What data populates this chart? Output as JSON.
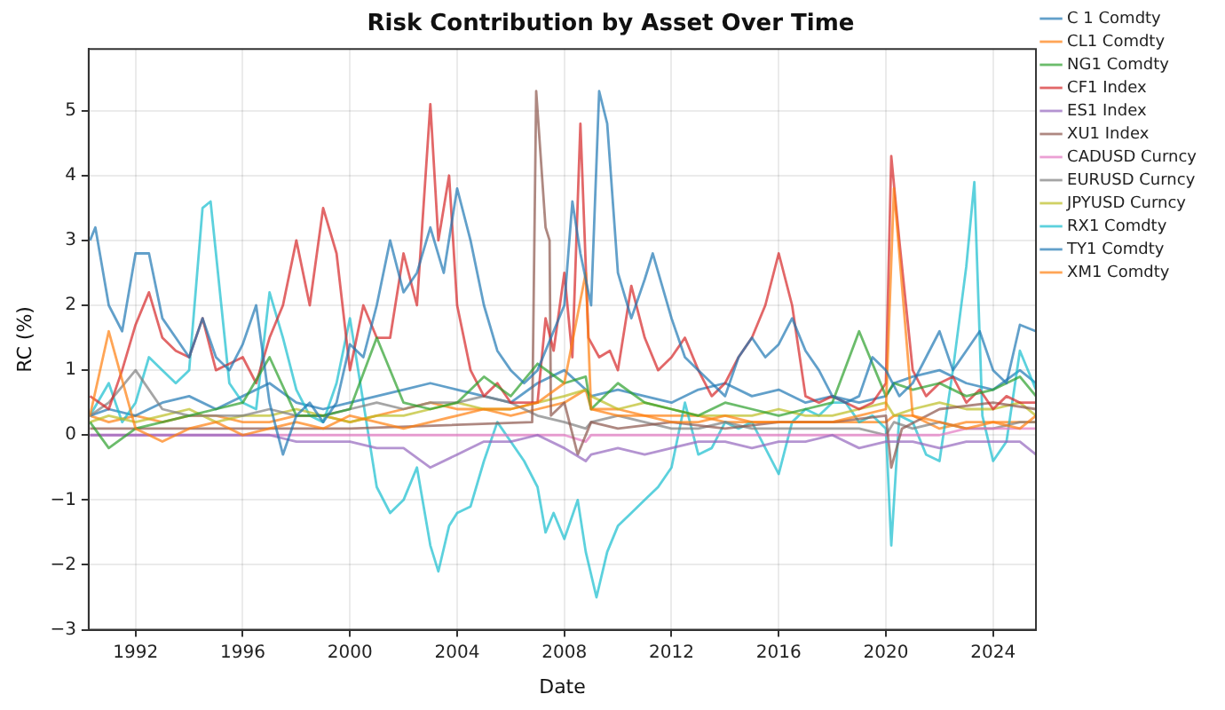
{
  "chart_data": {
    "type": "line",
    "title": "Risk Contribution by Asset Over Time",
    "xlabel": "Date",
    "ylabel": "RC (%)",
    "x": [
      1990.3,
      1991,
      1992,
      1993,
      1994,
      1995,
      1996,
      1997,
      1998,
      1999,
      2000,
      2001,
      2002,
      2003,
      2004,
      2005,
      2006,
      2007,
      2008,
      2008.8,
      2009,
      2010,
      2011,
      2012,
      2013,
      2014,
      2015,
      2016,
      2017,
      2018,
      2019,
      2020,
      2020.3,
      2021,
      2022,
      2023,
      2024,
      2025,
      2025.6
    ],
    "xlim": [
      1990.25,
      2025.6
    ],
    "xticks": [
      1992,
      1996,
      2000,
      2004,
      2008,
      2012,
      2016,
      2020,
      2024
    ],
    "ylim": [
      -3,
      5.95
    ],
    "yticks": [
      {
        "value": -3,
        "label": "−3"
      },
      {
        "value": -2,
        "label": "−2"
      },
      {
        "value": -1,
        "label": "−1"
      },
      0,
      1,
      2,
      3,
      4,
      5
    ],
    "grid": true,
    "legend": "right",
    "marker": "none",
    "line_style": "solid",
    "series": [
      {
        "name": "C 1 Comdty",
        "color": "#1f77b4",
        "x": [
          1990.3,
          1990.5,
          1991,
          1991.5,
          1992,
          1992.5,
          1993,
          1993.5,
          1994,
          1994.5,
          1995,
          1995.5,
          1996,
          1996.5,
          1997,
          1997.5,
          1998,
          1998.5,
          1999,
          1999.5,
          2000,
          2000.5,
          2001,
          2001.5,
          2002,
          2002.5,
          2003,
          2003.5,
          2004,
          2004.5,
          2005,
          2005.5,
          2006,
          2006.5,
          2007,
          2007.5,
          2008,
          2008.3,
          2008.6,
          2009,
          2009.3,
          2009.6,
          2010,
          2010.5,
          2011,
          2011.3,
          2012,
          2012.5,
          2013,
          2013.5,
          2014,
          2014.5,
          2015,
          2015.5,
          2016,
          2016.5,
          2017,
          2017.5,
          2018,
          2018.5,
          2019,
          2019.5,
          2020,
          2020.5,
          2021,
          2021.5,
          2022,
          2022.5,
          2023,
          2023.5,
          2024,
          2024.5,
          2025,
          2025.6
        ],
        "values": [
          3.0,
          3.2,
          2.0,
          1.6,
          2.8,
          2.8,
          1.8,
          1.5,
          1.2,
          1.8,
          1.2,
          1.0,
          1.4,
          2.0,
          0.5,
          -0.3,
          0.3,
          0.5,
          0.2,
          0.5,
          1.4,
          1.2,
          2.0,
          3.0,
          2.2,
          2.5,
          3.2,
          2.5,
          3.8,
          3.0,
          2.0,
          1.3,
          1.0,
          0.8,
          1.0,
          1.5,
          2.0,
          3.6,
          2.8,
          2.0,
          5.3,
          4.8,
          2.5,
          1.8,
          2.4,
          2.8,
          1.8,
          1.2,
          1.0,
          0.8,
          0.6,
          1.2,
          1.5,
          1.2,
          1.4,
          1.8,
          1.3,
          1.0,
          0.6,
          0.5,
          0.6,
          1.2,
          1.0,
          0.6,
          0.8,
          1.2,
          1.6,
          1.0,
          1.3,
          1.6,
          1.0,
          0.8,
          1.7,
          1.6
        ]
      },
      {
        "name": "CL1 Comdty",
        "color": "#ff7f0e",
        "values": [
          0.3,
          1.6,
          0.1,
          -0.1,
          0.1,
          0.2,
          0.0,
          0.1,
          0.2,
          0.1,
          0.3,
          0.2,
          0.1,
          0.2,
          0.3,
          0.4,
          0.4,
          0.5,
          0.8,
          2.5,
          0.4,
          0.3,
          0.3,
          0.2,
          0.2,
          0.3,
          0.2,
          0.2,
          0.2,
          0.2,
          0.3,
          0.4,
          3.8,
          0.3,
          0.2,
          0.1,
          0.2,
          0.1,
          0.3
        ]
      },
      {
        "name": "NG1 Comdty",
        "color": "#2ca02c",
        "values": [
          0.2,
          -0.2,
          0.1,
          0.2,
          0.3,
          0.4,
          0.5,
          1.2,
          0.3,
          0.3,
          0.4,
          1.5,
          0.5,
          0.4,
          0.5,
          0.9,
          0.6,
          1.1,
          0.8,
          0.9,
          0.4,
          0.8,
          0.5,
          0.4,
          0.3,
          0.5,
          0.4,
          0.3,
          0.4,
          0.5,
          1.6,
          0.6,
          0.8,
          0.7,
          0.8,
          0.6,
          0.7,
          0.9,
          0.6
        ]
      },
      {
        "name": "CF1 Index",
        "color": "#d62728",
        "x": [
          1990.3,
          1991,
          1991.5,
          1992,
          1992.5,
          1993,
          1993.5,
          1994,
          1994.5,
          1995,
          1996,
          1996.5,
          1997,
          1997.5,
          1998,
          1998.5,
          1999,
          1999.5,
          2000,
          2000.5,
          2001,
          2001.5,
          2002,
          2002.5,
          2003,
          2003.3,
          2003.7,
          2004,
          2004.5,
          2005,
          2005.5,
          2006,
          2006.5,
          2007,
          2007.3,
          2007.6,
          2008,
          2008.3,
          2008.6,
          2008.9,
          2009.3,
          2009.7,
          2010,
          2010.5,
          2011,
          2011.5,
          2012,
          2012.5,
          2013,
          2013.5,
          2014,
          2014.5,
          2015,
          2015.5,
          2016,
          2016.5,
          2017,
          2017.5,
          2018,
          2018.5,
          2019,
          2019.5,
          2020,
          2020.2,
          2020.5,
          2021,
          2021.5,
          2022,
          2022.5,
          2023,
          2023.5,
          2024,
          2024.5,
          2025,
          2025.6
        ],
        "values": [
          0.6,
          0.4,
          1.0,
          1.7,
          2.2,
          1.5,
          1.3,
          1.2,
          1.8,
          1.0,
          1.2,
          0.8,
          1.5,
          2.0,
          3.0,
          2.0,
          3.5,
          2.8,
          1.0,
          2.0,
          1.5,
          1.5,
          2.8,
          2.0,
          5.1,
          3.0,
          4.0,
          2.0,
          1.0,
          0.6,
          0.8,
          0.5,
          0.5,
          0.5,
          1.8,
          1.3,
          2.5,
          1.2,
          4.8,
          1.5,
          1.2,
          1.3,
          1.0,
          2.3,
          1.5,
          1.0,
          1.2,
          1.5,
          1.0,
          0.6,
          0.8,
          1.2,
          1.5,
          2.0,
          2.8,
          2.0,
          0.6,
          0.5,
          0.6,
          0.5,
          0.4,
          0.5,
          0.8,
          4.3,
          3.0,
          1.0,
          0.6,
          0.8,
          0.9,
          0.5,
          0.7,
          0.4,
          0.6,
          0.5,
          0.5
        ]
      },
      {
        "name": "ES1 Index",
        "color": "#9467bd",
        "values": [
          0.0,
          0.0,
          0.0,
          0.0,
          0.0,
          0.0,
          0.0,
          0.0,
          -0.1,
          -0.1,
          -0.1,
          -0.2,
          -0.2,
          -0.5,
          -0.3,
          -0.1,
          -0.1,
          0.0,
          -0.2,
          -0.4,
          -0.3,
          -0.2,
          -0.3,
          -0.2,
          -0.1,
          -0.1,
          -0.2,
          -0.1,
          -0.1,
          0.0,
          -0.2,
          -0.1,
          -0.1,
          -0.1,
          -0.2,
          -0.1,
          -0.1,
          -0.1,
          -0.3
        ]
      },
      {
        "name": "XU1 Index",
        "color": "#8c564b",
        "x": [
          1990.3,
          1995,
          2000,
          2006.8,
          2006.95,
          2007.3,
          2007.45,
          2007.5,
          2008,
          2008.5,
          2009,
          2010,
          2012,
          2014,
          2016,
          2018,
          2020,
          2020.2,
          2020.6,
          2022,
          2024,
          2025.6
        ],
        "values": [
          0.1,
          0.1,
          0.1,
          0.2,
          5.3,
          3.2,
          3.0,
          0.3,
          0.5,
          -0.3,
          0.2,
          0.1,
          0.2,
          0.1,
          0.2,
          0.2,
          0.3,
          -0.5,
          0.1,
          0.4,
          0.5,
          0.4
        ]
      },
      {
        "name": "CADUSD Curncy",
        "color": "#e377c2",
        "values": [
          0.0,
          0.0,
          0.0,
          0.0,
          0.0,
          0.0,
          0.0,
          0.0,
          0.0,
          0.0,
          0.0,
          0.0,
          0.0,
          0.0,
          0.0,
          0.0,
          0.0,
          0.0,
          0.0,
          -0.1,
          0.0,
          0.0,
          0.0,
          0.0,
          0.0,
          0.0,
          0.0,
          0.0,
          0.0,
          0.0,
          0.0,
          0.0,
          0.0,
          0.0,
          0.0,
          0.1,
          0.1,
          0.1,
          0.1
        ]
      },
      {
        "name": "EURUSD Curncy",
        "color": "#7f7f7f",
        "values": [
          0.3,
          0.5,
          1.0,
          0.4,
          0.3,
          0.3,
          0.3,
          0.4,
          0.3,
          0.3,
          0.4,
          0.5,
          0.4,
          0.5,
          0.5,
          0.6,
          0.5,
          0.3,
          0.2,
          0.1,
          0.2,
          0.3,
          0.2,
          0.1,
          0.1,
          0.2,
          0.1,
          0.1,
          0.1,
          0.1,
          0.1,
          0.0,
          0.2,
          0.1,
          0.2,
          0.1,
          0.1,
          0.2,
          0.2
        ]
      },
      {
        "name": "JPYUSD Curncy",
        "color": "#bcbd22",
        "values": [
          0.2,
          0.3,
          0.2,
          0.3,
          0.4,
          0.2,
          0.3,
          0.3,
          0.4,
          0.3,
          0.2,
          0.3,
          0.3,
          0.4,
          0.5,
          0.4,
          0.4,
          0.5,
          0.6,
          0.7,
          0.6,
          0.4,
          0.5,
          0.4,
          0.3,
          0.3,
          0.3,
          0.4,
          0.3,
          0.3,
          0.4,
          0.5,
          0.3,
          0.4,
          0.5,
          0.4,
          0.4,
          0.5,
          0.3
        ]
      },
      {
        "name": "RX1 Comdty",
        "color": "#17becf",
        "x": [
          1990.3,
          1991,
          1991.5,
          1992,
          1992.5,
          1993,
          1993.5,
          1994,
          1994.5,
          1994.8,
          1995.2,
          1995.5,
          1996,
          1996.5,
          1997,
          1997.5,
          1998,
          1998.5,
          1999,
          1999.5,
          2000,
          2000.5,
          2001,
          2001.5,
          2002,
          2002.5,
          2003,
          2003.3,
          2003.7,
          2004,
          2004.5,
          2005,
          2005.5,
          2006,
          2006.5,
          2007,
          2007.3,
          2007.6,
          2008,
          2008.5,
          2008.8,
          2009.2,
          2009.6,
          2010,
          2010.5,
          2011,
          2011.5,
          2012,
          2012.5,
          2013,
          2013.5,
          2014,
          2014.5,
          2015,
          2015.5,
          2016,
          2016.5,
          2017,
          2017.5,
          2018,
          2018.5,
          2019,
          2019.5,
          2020,
          2020.2,
          2020.5,
          2021,
          2021.5,
          2022,
          2022.5,
          2023,
          2023.3,
          2023.6,
          2024,
          2024.5,
          2025,
          2025.6
        ],
        "values": [
          0.3,
          0.8,
          0.2,
          0.5,
          1.2,
          1.0,
          0.8,
          1.0,
          3.5,
          3.6,
          2.0,
          0.8,
          0.5,
          0.4,
          2.2,
          1.5,
          0.7,
          0.3,
          0.2,
          0.8,
          1.8,
          0.5,
          -0.8,
          -1.2,
          -1.0,
          -0.5,
          -1.7,
          -2.1,
          -1.4,
          -1.2,
          -1.1,
          -0.4,
          0.2,
          -0.1,
          -0.4,
          -0.8,
          -1.5,
          -1.2,
          -1.6,
          -1.0,
          -1.8,
          -2.5,
          -1.8,
          -1.4,
          -1.2,
          -1.0,
          -0.8,
          -0.5,
          0.5,
          -0.3,
          -0.2,
          0.2,
          0.1,
          0.2,
          -0.2,
          -0.6,
          0.2,
          0.4,
          0.3,
          0.5,
          0.5,
          0.2,
          0.3,
          0.1,
          -1.7,
          0.3,
          0.2,
          -0.3,
          -0.4,
          1.0,
          2.6,
          3.9,
          0.3,
          -0.4,
          -0.1,
          1.3,
          0.7
        ]
      },
      {
        "name": "TY1 Comdty",
        "color": "#1f77b4",
        "values": [
          0.3,
          0.4,
          0.3,
          0.5,
          0.6,
          0.4,
          0.6,
          0.8,
          0.5,
          0.4,
          0.5,
          0.6,
          0.7,
          0.8,
          0.7,
          0.6,
          0.5,
          0.8,
          1.0,
          0.7,
          0.6,
          0.7,
          0.6,
          0.5,
          0.7,
          0.8,
          0.6,
          0.7,
          0.5,
          0.6,
          0.5,
          0.6,
          0.8,
          0.9,
          1.0,
          0.8,
          0.7,
          1.0,
          0.8
        ]
      },
      {
        "name": "XM1 Comdty",
        "color": "#ff7f0e",
        "values": [
          0.3,
          0.2,
          0.3,
          0.2,
          0.3,
          0.3,
          0.2,
          0.2,
          0.3,
          0.3,
          0.2,
          0.3,
          0.4,
          0.5,
          0.4,
          0.4,
          0.3,
          0.4,
          0.5,
          0.7,
          0.4,
          0.4,
          0.3,
          0.3,
          0.3,
          0.2,
          0.2,
          0.2,
          0.2,
          0.2,
          0.2,
          0.2,
          0.3,
          0.3,
          0.1,
          0.2,
          0.2,
          0.2,
          0.2
        ]
      }
    ]
  }
}
